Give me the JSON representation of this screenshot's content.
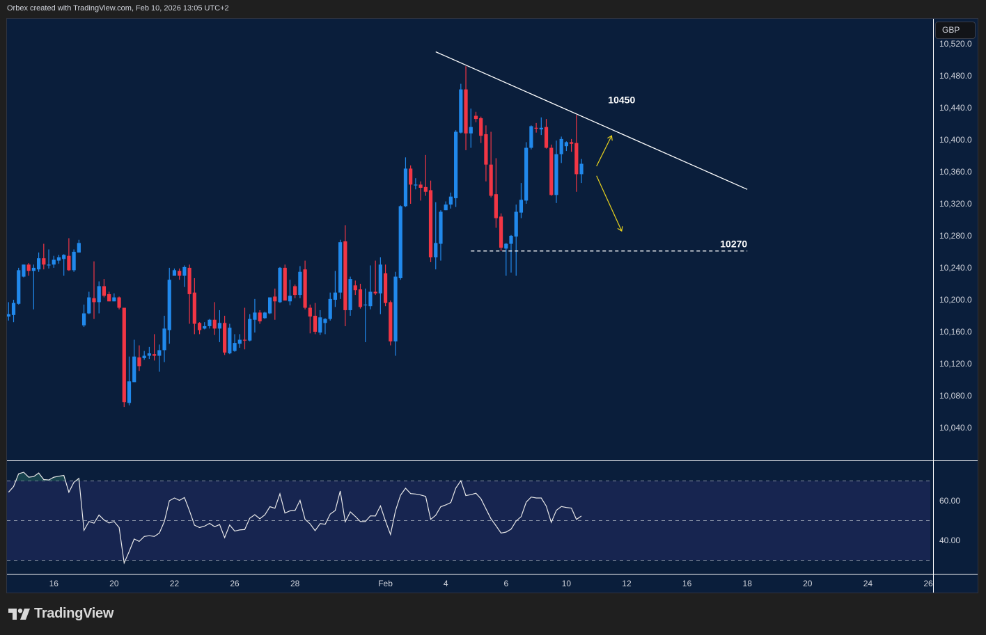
{
  "header": {
    "text": "Orbex created with TradingView.com, Feb 10, 2026 13:05 UTC+2"
  },
  "price_scale": {
    "currency": "GBP"
  },
  "branding": {
    "logo_text": "TradingView"
  },
  "colors": {
    "up": "#2189ec",
    "down": "#f23645",
    "background": "#0a1e3b",
    "rsi_band": "#172550",
    "rsi_line": "#e8e8e8",
    "trendline": "#ffffff",
    "arrows": "#e8d21d",
    "overbought_fill": "#1f5a5a"
  },
  "chart_data": [
    {
      "type": "candlestick",
      "interval": "4h",
      "price_axis": {
        "range": [
          10010,
          10540
        ],
        "ticks": [
          "10,520.0",
          "10,480.0",
          "10,440.0",
          "10,400.0",
          "10,360.0",
          "10,320.0",
          "10,280.0",
          "10,240.0",
          "10,200.0",
          "10,160.0",
          "10,120.0",
          "10,080.0",
          "10,040.0"
        ],
        "tick_values": [
          10520,
          10480,
          10440,
          10400,
          10360,
          10320,
          10280,
          10240,
          10200,
          10160,
          10120,
          10080,
          10040
        ]
      },
      "time_axis": {
        "ticks": [
          {
            "label": "16",
            "date": "2026-01-16T00:00"
          },
          {
            "label": "20",
            "date": "2026-01-20T00:00"
          },
          {
            "label": "22",
            "date": "2026-01-22T00:00"
          },
          {
            "label": "26",
            "date": "2026-01-26T00:00"
          },
          {
            "label": "28",
            "date": "2026-01-28T00:00"
          },
          {
            "label": "Feb",
            "date": "2026-02-02T00:00"
          },
          {
            "label": "4",
            "date": "2026-02-04T00:00"
          },
          {
            "label": "6",
            "date": "2026-02-06T00:00"
          },
          {
            "label": "10",
            "date": "2026-02-10T00:00"
          },
          {
            "label": "12",
            "date": "2026-02-12T00:00"
          },
          {
            "label": "16",
            "date": "2026-02-16T00:00"
          },
          {
            "label": "18",
            "date": "2026-02-18T00:00"
          },
          {
            "label": "20",
            "date": "2026-02-20T00:00"
          },
          {
            "label": "24",
            "date": "2026-02-24T00:00"
          },
          {
            "label": "26",
            "date": "2026-02-26T00:00"
          }
        ]
      },
      "columns": [
        "time",
        "open",
        "high",
        "low",
        "close"
      ],
      "candles": [
        [
          "2026-01-14T12:00",
          10179,
          10197,
          10174,
          10182
        ],
        [
          "2026-01-14T16:00",
          10181,
          10200,
          10172,
          10196
        ],
        [
          "2026-01-14T20:00",
          10195,
          10240,
          10194,
          10237
        ],
        [
          "2026-01-15T00:00",
          10229,
          10244,
          10228,
          10244
        ],
        [
          "2026-01-15T04:00",
          10244,
          10246,
          10230,
          10236
        ],
        [
          "2026-01-15T08:00",
          10236,
          10244,
          10188,
          10240
        ],
        [
          "2026-01-15T12:00",
          10238,
          10259,
          10235,
          10252
        ],
        [
          "2026-01-15T16:00",
          10252,
          10270,
          10238,
          10244
        ],
        [
          "2026-01-15T20:00",
          10243,
          10263,
          10239,
          10244
        ],
        [
          "2026-01-16T00:00",
          10244,
          10255,
          10240,
          10250
        ],
        [
          "2026-01-16T04:00",
          10249,
          10256,
          10245,
          10253
        ],
        [
          "2026-01-16T08:00",
          10251,
          10257,
          10230,
          10256
        ],
        [
          "2026-01-16T12:00",
          10255,
          10277,
          10236,
          10237
        ],
        [
          "2026-01-16T16:00",
          10237,
          10263,
          10235,
          10260
        ],
        [
          "2026-01-16T20:00",
          10259,
          10275,
          10259,
          10271
        ],
        [
          "2026-01-19T00:00",
          10168,
          10194,
          10166,
          10183
        ],
        [
          "2026-01-19T04:00",
          10183,
          10210,
          10182,
          10203
        ],
        [
          "2026-01-19T08:00",
          10202,
          10248,
          10176,
          10197
        ],
        [
          "2026-01-19T12:00",
          10197,
          10223,
          10183,
          10217
        ],
        [
          "2026-01-19T16:00",
          10217,
          10226,
          10203,
          10205
        ],
        [
          "2026-01-19T20:00",
          10207,
          10210,
          10198,
          10198
        ],
        [
          "2026-01-20T00:00",
          10198,
          10208,
          10198,
          10203
        ],
        [
          "2026-01-20T04:00",
          10203,
          10204,
          10188,
          10190
        ],
        [
          "2026-01-20T08:00",
          10190,
          10190,
          10066,
          10072
        ],
        [
          "2026-01-20T12:00",
          10071,
          10129,
          10068,
          10098
        ],
        [
          "2026-01-20T16:00",
          10097,
          10150,
          10097,
          10129
        ],
        [
          "2026-01-20T20:00",
          10128,
          10143,
          10111,
          10117
        ],
        [
          "2026-01-21T00:00",
          10127,
          10136,
          10125,
          10130
        ],
        [
          "2026-01-21T04:00",
          10130,
          10141,
          10126,
          10133
        ],
        [
          "2026-01-21T08:00",
          10132,
          10157,
          10124,
          10130
        ],
        [
          "2026-01-21T12:00",
          10130,
          10144,
          10110,
          10137
        ],
        [
          "2026-01-21T16:00",
          10137,
          10180,
          10122,
          10164
        ],
        [
          "2026-01-21T20:00",
          10162,
          10240,
          10145,
          10225
        ],
        [
          "2026-01-22T00:00",
          10230,
          10239,
          10230,
          10237
        ],
        [
          "2026-01-22T04:00",
          10236,
          10239,
          10225,
          10230
        ],
        [
          "2026-01-22T08:00",
          10230,
          10243,
          10216,
          10241
        ],
        [
          "2026-01-22T12:00",
          10240,
          10244,
          10170,
          10207
        ],
        [
          "2026-01-22T16:00",
          10209,
          10227,
          10157,
          10170
        ],
        [
          "2026-01-22T20:00",
          10171,
          10172,
          10157,
          10162
        ],
        [
          "2026-01-23T00:00",
          10164,
          10172,
          10163,
          10167
        ],
        [
          "2026-01-23T04:00",
          10167,
          10176,
          10164,
          10175
        ],
        [
          "2026-01-23T08:00",
          10175,
          10197,
          10156,
          10164
        ],
        [
          "2026-01-23T12:00",
          10164,
          10187,
          10147,
          10171
        ],
        [
          "2026-01-23T16:00",
          10171,
          10180,
          10131,
          10134
        ],
        [
          "2026-01-23T20:00",
          10133,
          10170,
          10132,
          10165
        ],
        [
          "2026-01-26T00:00",
          10136,
          10157,
          10135,
          10146
        ],
        [
          "2026-01-26T04:00",
          10145,
          10157,
          10140,
          10150
        ],
        [
          "2026-01-26T08:00",
          10150,
          10190,
          10138,
          10149
        ],
        [
          "2026-01-26T12:00",
          10149,
          10182,
          10148,
          10176
        ],
        [
          "2026-01-26T16:00",
          10175,
          10201,
          10159,
          10184
        ],
        [
          "2026-01-26T20:00",
          10184,
          10187,
          10170,
          10173
        ],
        [
          "2026-01-27T00:00",
          10177,
          10185,
          10176,
          10184
        ],
        [
          "2026-01-27T04:00",
          10183,
          10203,
          10182,
          10203
        ],
        [
          "2026-01-27T08:00",
          10204,
          10214,
          10175,
          10198
        ],
        [
          "2026-01-27T12:00",
          10197,
          10241,
          10196,
          10240
        ],
        [
          "2026-01-27T16:00",
          10240,
          10244,
          10199,
          10199
        ],
        [
          "2026-01-27T20:00",
          10198,
          10225,
          10193,
          10205
        ],
        [
          "2026-01-28T00:00",
          10217,
          10219,
          10202,
          10206
        ],
        [
          "2026-01-28T04:00",
          10206,
          10242,
          10202,
          10235
        ],
        [
          "2026-01-28T08:00",
          10238,
          10249,
          10188,
          10190
        ],
        [
          "2026-01-28T12:00",
          10190,
          10194,
          10158,
          10179
        ],
        [
          "2026-01-28T16:00",
          10180,
          10196,
          10157,
          10160
        ],
        [
          "2026-01-28T20:00",
          10159,
          10187,
          10156,
          10178
        ],
        [
          "2026-01-29T00:00",
          10171,
          10177,
          10157,
          10176
        ],
        [
          "2026-01-29T04:00",
          10176,
          10209,
          10174,
          10201
        ],
        [
          "2026-01-29T08:00",
          10200,
          10236,
          10191,
          10209
        ],
        [
          "2026-01-29T12:00",
          10209,
          10275,
          10201,
          10272
        ],
        [
          "2026-01-29T16:00",
          10273,
          10293,
          10167,
          10187
        ],
        [
          "2026-01-29T20:00",
          10187,
          10229,
          10180,
          10226
        ],
        [
          "2026-01-30T00:00",
          10218,
          10224,
          10206,
          10212
        ],
        [
          "2026-01-30T04:00",
          10213,
          10220,
          10189,
          10191
        ],
        [
          "2026-01-30T08:00",
          10193,
          10214,
          10147,
          10194
        ],
        [
          "2026-01-30T12:00",
          10192,
          10243,
          10188,
          10210
        ],
        [
          "2026-01-30T16:00",
          10210,
          10249,
          10206,
          10208
        ],
        [
          "2026-01-30T20:00",
          10208,
          10253,
          10182,
          10244
        ],
        [
          "2026-02-02T00:00",
          10233,
          10244,
          10192,
          10196
        ],
        [
          "2026-02-02T04:00",
          10197,
          10199,
          10143,
          10148
        ],
        [
          "2026-02-02T08:00",
          10148,
          10235,
          10130,
          10229
        ],
        [
          "2026-02-02T12:00",
          10227,
          10318,
          10225,
          10317
        ],
        [
          "2026-02-02T16:00",
          10317,
          10378,
          10316,
          10364
        ],
        [
          "2026-02-02T20:00",
          10364,
          10368,
          10320,
          10344
        ],
        [
          "2026-02-03T00:00",
          10343,
          10352,
          10338,
          10344
        ],
        [
          "2026-02-03T04:00",
          10344,
          10348,
          10324,
          10340
        ],
        [
          "2026-02-03T08:00",
          10341,
          10381,
          10330,
          10335
        ],
        [
          "2026-02-03T12:00",
          10337,
          10349,
          10247,
          10253
        ],
        [
          "2026-02-03T16:00",
          10253,
          10322,
          10238,
          10271
        ],
        [
          "2026-02-03T20:00",
          10270,
          10312,
          10249,
          10310
        ],
        [
          "2026-02-04T00:00",
          10312,
          10323,
          10312,
          10319
        ],
        [
          "2026-02-04T04:00",
          10319,
          10334,
          10314,
          10329
        ],
        [
          "2026-02-04T08:00",
          10327,
          10412,
          10316,
          10410
        ],
        [
          "2026-02-04T12:00",
          10409,
          10470,
          10408,
          10463
        ],
        [
          "2026-02-04T16:00",
          10463,
          10492,
          10387,
          10408
        ],
        [
          "2026-02-04T20:00",
          10408,
          10439,
          10390,
          10416
        ],
        [
          "2026-02-05T00:00",
          10430,
          10435,
          10422,
          10426
        ],
        [
          "2026-02-05T04:00",
          10427,
          10429,
          10396,
          10405
        ],
        [
          "2026-02-05T08:00",
          10407,
          10418,
          10348,
          10369
        ],
        [
          "2026-02-05T12:00",
          10369,
          10410,
          10328,
          10330
        ],
        [
          "2026-02-05T16:00",
          10332,
          10377,
          10290,
          10302
        ],
        [
          "2026-02-05T20:00",
          10304,
          10308,
          10261,
          10265
        ],
        [
          "2026-02-06T00:00",
          10264,
          10271,
          10230,
          10270
        ],
        [
          "2026-02-06T04:00",
          10270,
          10281,
          10234,
          10280
        ],
        [
          "2026-02-06T08:00",
          10279,
          10319,
          10230,
          10310
        ],
        [
          "2026-02-06T12:00",
          10309,
          10346,
          10302,
          10325
        ],
        [
          "2026-02-06T16:00",
          10324,
          10397,
          10320,
          10390
        ],
        [
          "2026-02-06T20:00",
          10390,
          10418,
          10388,
          10417
        ],
        [
          "2026-02-09T00:00",
          10415,
          10421,
          10409,
          10414
        ],
        [
          "2026-02-09T04:00",
          10413,
          10428,
          10406,
          10415
        ],
        [
          "2026-02-09T08:00",
          10416,
          10426,
          10389,
          10390
        ],
        [
          "2026-02-09T12:00",
          10390,
          10394,
          10330,
          10331
        ],
        [
          "2026-02-09T16:00",
          10331,
          10399,
          10321,
          10382
        ],
        [
          "2026-02-09T20:00",
          10382,
          10404,
          10371,
          10401
        ],
        [
          "2026-02-10T00:00",
          10392,
          10398,
          10386,
          10397
        ],
        [
          "2026-02-10T04:00",
          10397,
          10401,
          10385,
          10395
        ],
        [
          "2026-02-10T08:00",
          10396,
          10431,
          10335,
          10357
        ],
        [
          "2026-02-10T12:00",
          10357,
          10376,
          10346,
          10370
        ]
      ],
      "annotations": {
        "trendline": {
          "from": {
            "time": "2026-02-03T16:00",
            "price": 10510
          },
          "to": {
            "time": "2026-02-18T00:00",
            "price": 10338
          }
        },
        "support_line": {
          "from": {
            "time": "2026-02-04T20:00",
            "price": 10261
          },
          "to": {
            "time": "2026-02-18T00:00",
            "price": 10261
          },
          "style": "dashed"
        },
        "labels": [
          {
            "text": "10450",
            "time": "2026-02-11T20:00",
            "price": 10450,
            "anchor": "middle"
          },
          {
            "text": "10270",
            "time": "2026-02-18T00:00",
            "price": 10270,
            "anchor": "end"
          }
        ],
        "arrows": [
          {
            "direction": "up",
            "from": {
              "time": "2026-02-11T00:00",
              "price": 10367
            },
            "to": {
              "time": "2026-02-11T12:00",
              "price": 10405
            }
          },
          {
            "direction": "down",
            "from": {
              "time": "2026-02-11T00:00",
              "price": 10355
            },
            "to": {
              "time": "2026-02-11T20:00",
              "price": 10286
            }
          }
        ]
      }
    },
    {
      "type": "line",
      "indicator": "RSI",
      "levels": [
        70,
        50,
        30
      ],
      "axis_ticks": [
        "60.00",
        "40.00"
      ],
      "axis_tick_values": [
        60,
        40
      ],
      "values": [
        64.3,
        67.2,
        73.6,
        74.4,
        71.9,
        72.2,
        74.0,
        70.7,
        70.5,
        71.9,
        72.4,
        72.8,
        64.3,
        69.3,
        71.3,
        45.1,
        49.5,
        48.7,
        52.8,
        50.3,
        48.8,
        49.5,
        46.5,
        28.6,
        34.4,
        40.7,
        39.5,
        42.0,
        42.4,
        42.0,
        43.7,
        49.5,
        60.0,
        61.4,
        60.2,
        61.6,
        55.0,
        47.7,
        46.5,
        47.2,
        48.6,
        46.9,
        48.0,
        41.4,
        47.8,
        44.7,
        45.3,
        45.5,
        51.2,
        53.0,
        50.9,
        52.9,
        57.0,
        56.2,
        63.5,
        53.8,
        54.9,
        55.1,
        60.2,
        50.6,
        48.4,
        44.9,
        48.5,
        48.1,
        53.3,
        55.1,
        64.9,
        49.4,
        54.4,
        52.1,
        49.5,
        49.5,
        52.4,
        52.3,
        57.4,
        49.8,
        43.0,
        55.0,
        62.8,
        66.3,
        63.6,
        63.4,
        62.9,
        62.2,
        50.6,
        52.7,
        57.0,
        57.9,
        59.1,
        66.4,
        70.1,
        62.6,
        63.1,
        63.8,
        61.0,
        55.9,
        50.9,
        47.4,
        43.7,
        44.2,
        45.7,
        49.8,
        52.0,
        59.3,
        61.9,
        61.4,
        61.4,
        57.3,
        49.1,
        55.2,
        57.1,
        56.6,
        56.3,
        50.6,
        52.3
      ]
    }
  ]
}
